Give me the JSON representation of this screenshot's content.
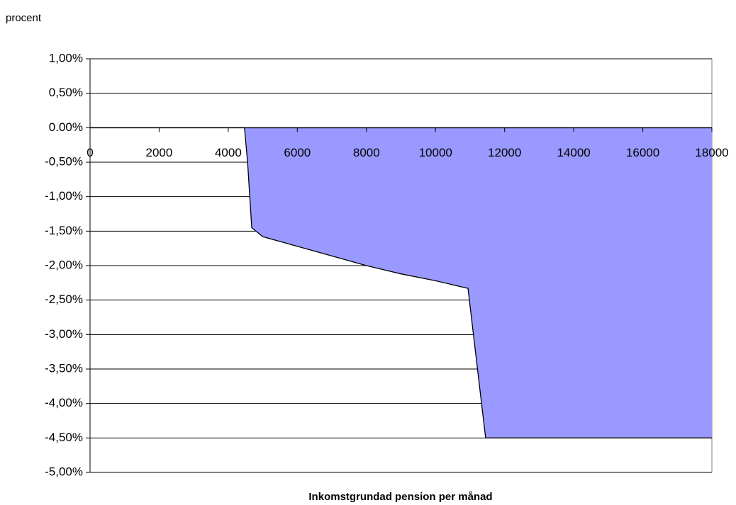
{
  "chart_data": {
    "type": "area",
    "ylabel": "procent",
    "xlabel": "Inkomstgrundad pension per månad",
    "x": [
      0,
      4470,
      4560,
      4680,
      5000,
      6000,
      7000,
      8000,
      9000,
      10000,
      10940,
      11450,
      18000
    ],
    "values": [
      0,
      0,
      -0.5,
      -1.45,
      -1.58,
      -1.72,
      -1.86,
      -2.0,
      -2.12,
      -2.22,
      -2.33,
      -4.5,
      -4.5
    ],
    "color": "#9999ff",
    "xlim": [
      0,
      18000
    ],
    "xticks": [
      0,
      2000,
      4000,
      6000,
      8000,
      10000,
      12000,
      14000,
      16000,
      18000
    ],
    "ylim": [
      -5,
      1
    ],
    "yticks": [
      {
        "value": 1,
        "label": "1,00%"
      },
      {
        "value": 0.5,
        "label": "0,50%"
      },
      {
        "value": 0,
        "label": "0.00%"
      },
      {
        "value": -0.5,
        "label": "-0,50%"
      },
      {
        "value": -1,
        "label": "-1,00%"
      },
      {
        "value": -1.5,
        "label": "-1,50%"
      },
      {
        "value": -2,
        "label": "-2,00%"
      },
      {
        "value": -2.5,
        "label": "-2,50%"
      },
      {
        "value": -3,
        "label": "-3,00%"
      },
      {
        "value": -3.5,
        "label": "-3,50%"
      },
      {
        "value": -4,
        "label": "-4,00%"
      },
      {
        "value": -4.5,
        "label": "-4,50%"
      },
      {
        "value": -5,
        "label": "-5,00%"
      }
    ],
    "grid": true
  }
}
